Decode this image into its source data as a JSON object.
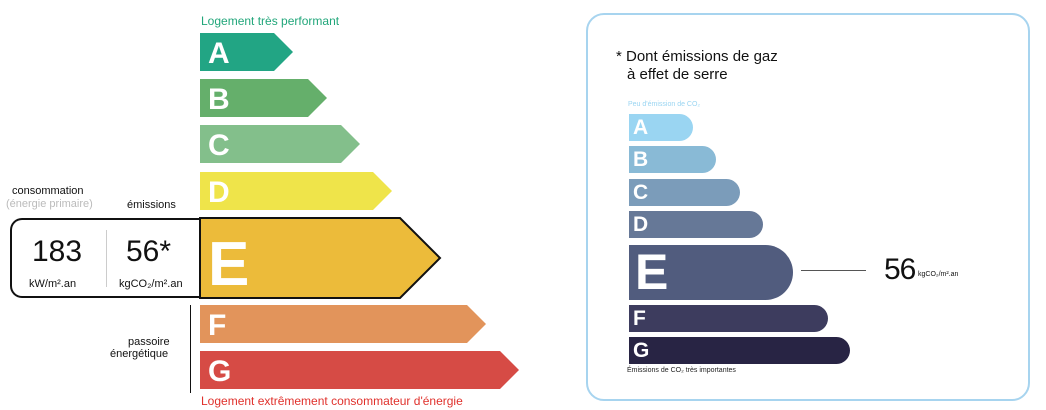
{
  "energy_label": {
    "top_caption": "Logement très performant",
    "bottom_caption": "Logement extrêmement consommateur d'énergie",
    "classes": [
      {
        "letter": "A",
        "color": "#22a584"
      },
      {
        "letter": "B",
        "color": "#65af6b"
      },
      {
        "letter": "C",
        "color": "#83bf8b"
      },
      {
        "letter": "D",
        "color": "#efe44a"
      },
      {
        "letter": "E",
        "color": "#ecbb3a"
      },
      {
        "letter": "F",
        "color": "#e2945b"
      },
      {
        "letter": "G",
        "color": "#d64b45"
      }
    ],
    "current_class": "E",
    "consumption_label": "consommation",
    "consumption_sub": "(énergie primaire)",
    "emissions_label": "émissions",
    "consumption_value": "183",
    "consumption_unit": "kW/m².an",
    "emissions_value": "56*",
    "emissions_unit": "kgCO₂/m².an",
    "passoire_line1": "passoire",
    "passoire_line2": "énergétique"
  },
  "ges_label": {
    "title_line1": "* Dont émissions de gaz",
    "title_line2": "à effet de serre",
    "top_caption": "Peu d'émission de CO₂",
    "bottom_caption": "Émissions de CO₂ très importantes",
    "classes": [
      {
        "letter": "A",
        "color": "#9ad5f2"
      },
      {
        "letter": "B",
        "color": "#89bad6"
      },
      {
        "letter": "C",
        "color": "#7b9cba"
      },
      {
        "letter": "D",
        "color": "#667897"
      },
      {
        "letter": "E",
        "color": "#515c7e"
      },
      {
        "letter": "F",
        "color": "#3d3c5e"
      },
      {
        "letter": "G",
        "color": "#282444"
      }
    ],
    "current_class": "E",
    "value": "56",
    "unit": "kgCO₂/m².an"
  }
}
